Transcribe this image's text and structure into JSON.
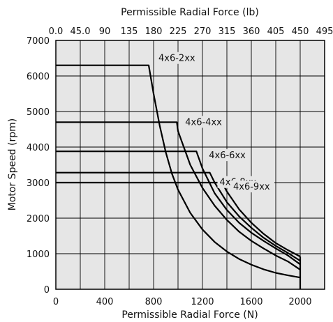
{
  "chart_data": {
    "type": "line",
    "xlabel": "Permissible Radial Force (N)",
    "x2label": "Permissible Radial Force (lb)",
    "ylabel": "Motor Speed (rpm)",
    "xlim": [
      0,
      2200
    ],
    "ylim": [
      0,
      7000
    ],
    "x_ticks": [
      "0",
      "400",
      "800",
      "1200",
      "1600",
      "2000"
    ],
    "x_tick_values": [
      0,
      400,
      800,
      1200,
      1600,
      2000
    ],
    "x2_ticks": [
      "0.0",
      "45.0",
      "90",
      "135",
      "180",
      "225",
      "270",
      "315",
      "360",
      "405",
      "450",
      "495"
    ],
    "y_ticks": [
      "0",
      "1000",
      "2000",
      "3000",
      "4000",
      "5000",
      "6000",
      "7000"
    ],
    "y_tick_values": [
      0,
      1000,
      2000,
      3000,
      4000,
      5000,
      6000,
      7000
    ],
    "grid": true,
    "background_color": "#e6e6e6",
    "line_color": "#000000",
    "series": [
      {
        "name": "4x6-2xx",
        "x": [
          0,
          760,
          800,
          850,
          900,
          950,
          1000,
          1100,
          1200,
          1300,
          1400,
          1500,
          1600,
          1700,
          1800,
          1900,
          2000
        ],
        "y": [
          6300,
          6300,
          5500,
          4600,
          3850,
          3250,
          2800,
          2150,
          1680,
          1330,
          1060,
          850,
          690,
          560,
          460,
          390,
          330
        ]
      },
      {
        "name": "4x6-4xx",
        "x": [
          0,
          990,
          1000,
          1100,
          1200,
          1300,
          1400,
          1500,
          1600,
          1700,
          1800,
          1900,
          2000
        ],
        "y": [
          4700,
          4700,
          4450,
          3500,
          2850,
          2350,
          1950,
          1620,
          1360,
          1150,
          950,
          780,
          550
        ]
      },
      {
        "name": "4x6-6xx",
        "x": [
          0,
          1150,
          1200,
          1300,
          1400,
          1500,
          1600,
          1700,
          1800,
          1900,
          2000
        ],
        "y": [
          3880,
          3880,
          3400,
          2700,
          2230,
          1870,
          1590,
          1360,
          1150,
          950,
          700
        ]
      },
      {
        "name": "4x6-8xx",
        "x": [
          0,
          1260,
          1300,
          1400,
          1500,
          1600,
          1700,
          1800,
          1900,
          2000
        ],
        "y": [
          3280,
          3280,
          3000,
          2450,
          2050,
          1730,
          1450,
          1220,
          1020,
          800
        ]
      },
      {
        "name": "4x6-9xx",
        "x": [
          0,
          1360,
          1400,
          1500,
          1600,
          1700,
          1800,
          1900,
          2000
        ],
        "y": [
          3000,
          3000,
          2750,
          2250,
          1870,
          1560,
          1300,
          1100,
          920
        ]
      }
    ]
  }
}
